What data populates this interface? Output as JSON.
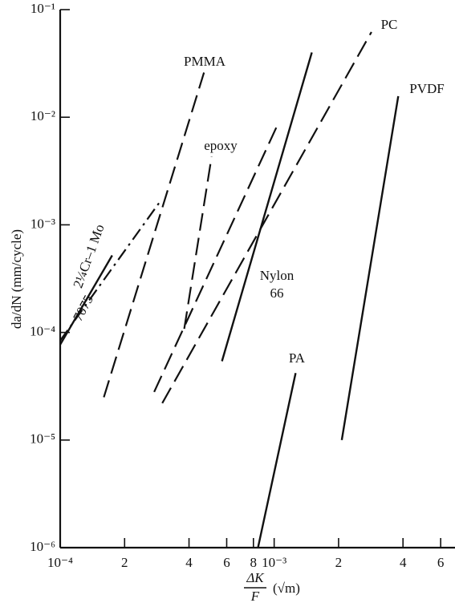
{
  "chart_data": {
    "type": "line",
    "log_x": true,
    "log_y": true,
    "y_label": "da/dN (mm/cycle)",
    "x_label": {
      "numerator": "ΔK",
      "denominator": "F",
      "unit": "(√m)"
    },
    "xlim": [
      0.0001,
      0.007
    ],
    "ylim": [
      1e-06,
      0.1
    ],
    "xticks": [
      {
        "value": 0.0001,
        "label": "10⁻⁴"
      },
      {
        "value": 0.0002,
        "label": "2"
      },
      {
        "value": 0.0004,
        "label": "4"
      },
      {
        "value": 0.0006,
        "label": "6"
      },
      {
        "value": 0.0008,
        "label": "8"
      },
      {
        "value": 0.001,
        "label": "10⁻³"
      },
      {
        "value": 0.002,
        "label": "2"
      },
      {
        "value": 0.004,
        "label": "4"
      },
      {
        "value": 0.006,
        "label": "6"
      }
    ],
    "yticks": [
      {
        "value": 0.1,
        "label": "10⁻¹"
      },
      {
        "value": 0.01,
        "label": "10⁻²"
      },
      {
        "value": 0.001,
        "label": "10⁻³"
      },
      {
        "value": 0.0001,
        "label": "10⁻⁴"
      },
      {
        "value": 1e-05,
        "label": "10⁻⁵"
      },
      {
        "value": 1e-06,
        "label": "10⁻⁶"
      }
    ],
    "series": [
      {
        "label_lines": [
          "PMMA"
        ],
        "style": "dashed",
        "color": "#111",
        "x": [
          0.00016,
          0.00047
        ],
        "values": [
          2.5e-05,
          0.026
        ]
      },
      {
        "label_lines": [
          "epoxy"
        ],
        "style": "dashed",
        "color": "#111",
        "x": [
          0.00038,
          0.00051
        ],
        "values": [
          0.000108,
          0.0043
        ]
      },
      {
        "label_lines": [
          "PC"
        ],
        "style": "dashed",
        "color": "#111",
        "x": [
          0.0003,
          0.00285
        ],
        "values": [
          2.2e-05,
          0.062
        ]
      },
      {
        "style": "dashed",
        "color": "#111",
        "x": [
          0.000275,
          0.00104
        ],
        "values": [
          2.8e-05,
          0.0086
        ]
      },
      {
        "label_lines": [
          "Nylon",
          "66"
        ],
        "style": "solid",
        "color": "#111",
        "x": [
          0.00057,
          0.0015
        ],
        "values": [
          5.4e-05,
          0.04
        ]
      },
      {
        "label_lines": [
          "PA"
        ],
        "style": "solid",
        "color": "#111",
        "x": [
          0.00084,
          0.00126
        ],
        "values": [
          1e-06,
          4.2e-05
        ]
      },
      {
        "label_lines": [
          "PVDF"
        ],
        "style": "solid",
        "color": "#111",
        "x": [
          0.00207,
          0.0038
        ],
        "values": [
          1e-05,
          0.0157
        ]
      },
      {
        "label_lines": [
          "2¼Cr–1 Mo"
        ],
        "style": "dashdot",
        "color": "#111",
        "x": [
          0.0001,
          0.00029
        ],
        "values": [
          8.4e-05,
          0.0016
        ]
      },
      {
        "label_lines": [
          "7075"
        ],
        "style": "solid",
        "color": "#111",
        "x": [
          0.0001,
          0.000175
        ],
        "values": [
          7.7e-05,
          0.00052
        ]
      }
    ]
  }
}
